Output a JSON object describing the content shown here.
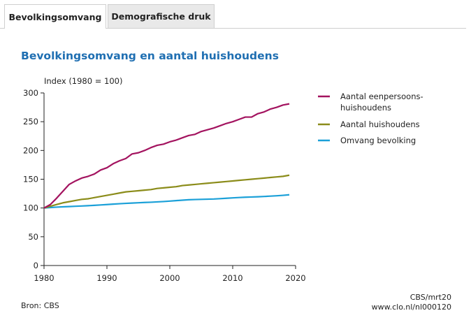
{
  "tabs": [
    {
      "label": "Bevolkingsomvang",
      "active": true
    },
    {
      "label": "Demografische druk",
      "active": false
    }
  ],
  "chart_data": {
    "type": "line",
    "title": "Bevolkingsomvang en aantal huishoudens",
    "ylabel": "Index (1980 = 100)",
    "xlabel": "",
    "xlim": [
      1980,
      2020
    ],
    "ylim": [
      0,
      300
    ],
    "x_ticks": [
      1980,
      1990,
      2000,
      2010,
      2020
    ],
    "y_ticks": [
      0,
      50,
      100,
      150,
      200,
      250,
      300
    ],
    "legend_position": "right",
    "x": [
      1980,
      1981,
      1982,
      1983,
      1984,
      1985,
      1986,
      1987,
      1988,
      1989,
      1990,
      1991,
      1992,
      1993,
      1994,
      1995,
      1996,
      1997,
      1998,
      1999,
      2000,
      2001,
      2002,
      2003,
      2004,
      2005,
      2006,
      2007,
      2008,
      2009,
      2010,
      2011,
      2012,
      2013,
      2014,
      2015,
      2016,
      2017,
      2018,
      2019
    ],
    "series": [
      {
        "name": "Aantal eenpersoonshuishoudens",
        "legend_lines": [
          "Aantal eenpersoons-",
          "huishoudens"
        ],
        "color": "#a3135f",
        "values": [
          100,
          106,
          117,
          129,
          141,
          147,
          152,
          155,
          159,
          166,
          170,
          177,
          182,
          186,
          194,
          196,
          200,
          205,
          209,
          211,
          215,
          218,
          222,
          226,
          228,
          233,
          236,
          239,
          243,
          247,
          250,
          254,
          258,
          258,
          264,
          267,
          272,
          275,
          279,
          281
        ]
      },
      {
        "name": "Aantal huishoudens",
        "legend_lines": [
          "Aantal huishoudens"
        ],
        "color": "#8b8c1a",
        "values": [
          100,
          103,
          106,
          109,
          111,
          113,
          115,
          116,
          118,
          120,
          122,
          124,
          126,
          128,
          129,
          130,
          131,
          132,
          134,
          135,
          136,
          137,
          139,
          140,
          141,
          142,
          143,
          144,
          145,
          146,
          147,
          148,
          149,
          150,
          151,
          152,
          153,
          154,
          155,
          157
        ]
      },
      {
        "name": "Omvang bevolking",
        "legend_lines": [
          "Omvang bevolking"
        ],
        "color": "#1ba0d8",
        "values": [
          100,
          100.8,
          101.5,
          102,
          102.5,
          103,
          103.5,
          104,
          104.6,
          105.3,
          106,
          106.7,
          107.4,
          108,
          108.6,
          109.1,
          109.6,
          110,
          110.6,
          111.2,
          112,
          112.8,
          113.6,
          114.3,
          114.7,
          115,
          115.3,
          115.6,
          116.2,
          116.9,
          117.6,
          118.2,
          118.7,
          119.1,
          119.5,
          120,
          120.6,
          121.2,
          122,
          123
        ]
      }
    ]
  },
  "footer": {
    "source": "Bron: CBS",
    "code": "CBS/mrt20",
    "url": "www.clo.nl/nl000120"
  }
}
